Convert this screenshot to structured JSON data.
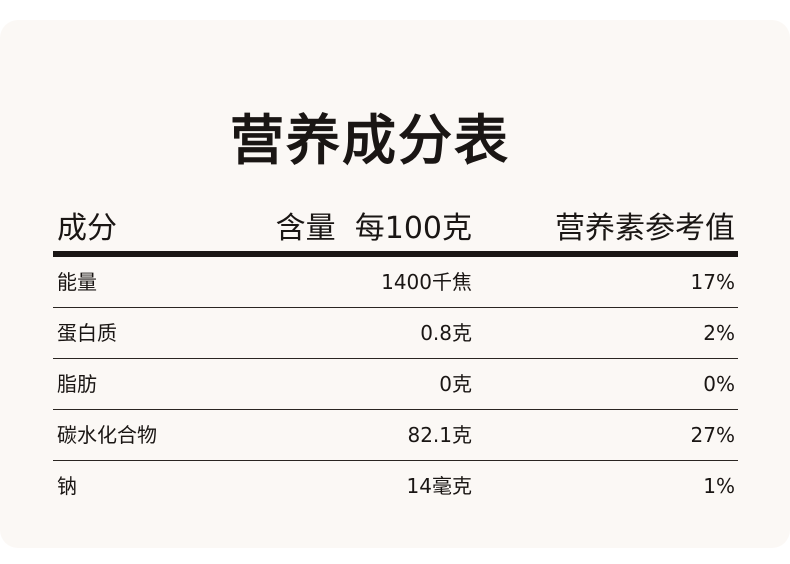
{
  "title": "营养成分表",
  "header": {
    "item": "成分",
    "amount": "含量  每100克",
    "nrv": "营养素参考值"
  },
  "rows": [
    {
      "item": "能量",
      "amount": "1400千焦",
      "nrv": "17%"
    },
    {
      "item": "蛋白质",
      "amount": "0.8克",
      "nrv": "2%"
    },
    {
      "item": "脂肪",
      "amount": "0克",
      "nrv": "0%"
    },
    {
      "item": "碳水化合物",
      "amount": "82.1克",
      "nrv": "27%"
    },
    {
      "item": "钠",
      "amount": "14毫克",
      "nrv": "1%"
    }
  ]
}
